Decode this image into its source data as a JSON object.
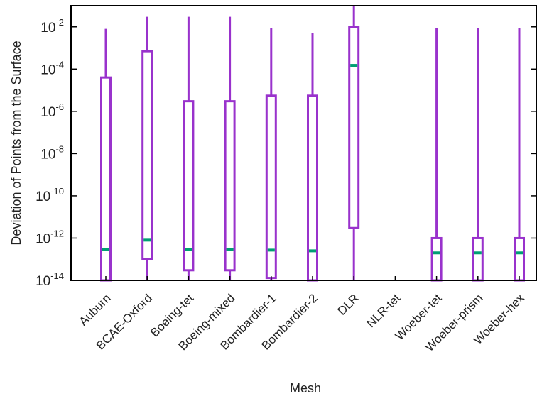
{
  "chart_data": {
    "type": "box",
    "title": "",
    "xlabel": "Mesh",
    "ylabel": "Deviation of Points from the Surface",
    "yscale": "log",
    "ylim": [
      1e-14,
      0.1
    ],
    "yticks": [
      {
        "value": 1e-14,
        "base": "10",
        "exp": "-14"
      },
      {
        "value": 1e-12,
        "base": "10",
        "exp": "-12"
      },
      {
        "value": 1e-10,
        "base": "10",
        "exp": "-10"
      },
      {
        "value": 1e-08,
        "base": "10",
        "exp": "-8"
      },
      {
        "value": 1e-06,
        "base": "10",
        "exp": "-6"
      },
      {
        "value": 0.0001,
        "base": "10",
        "exp": "-4"
      },
      {
        "value": 0.01,
        "base": "10",
        "exp": "-2"
      }
    ],
    "grid": false,
    "colors": {
      "box": "#9932CC",
      "median": "#009E73",
      "axis": "#000000"
    },
    "categories": [
      "Auburn",
      "BCAE-Oxford",
      "Boeing-tet",
      "Boeing-mixed",
      "Bombardier-1",
      "Bombardier-2",
      "DLR",
      "NLR-tet",
      "Woeber-tet",
      "Woeber-prism",
      "Woeber-hex"
    ],
    "boxes": [
      {
        "category": "Auburn",
        "whisker_low": 1e-14,
        "q1": 1e-14,
        "median": 3e-13,
        "q3": 4e-05,
        "whisker_high": 0.008
      },
      {
        "category": "BCAE-Oxford",
        "whisker_low": 1e-14,
        "q1": 1e-13,
        "median": 8e-13,
        "q3": 0.0007,
        "whisker_high": 0.03
      },
      {
        "category": "Boeing-tet",
        "whisker_low": 1e-14,
        "q1": 3e-14,
        "median": 3e-13,
        "q3": 3e-06,
        "whisker_high": 0.03
      },
      {
        "category": "Boeing-mixed",
        "whisker_low": 1e-14,
        "q1": 3e-14,
        "median": 3e-13,
        "q3": 3e-06,
        "whisker_high": 0.03
      },
      {
        "category": "Bombardier-1",
        "whisker_low": 1e-14,
        "q1": 1.3e-14,
        "median": 2.7e-13,
        "q3": 5.5e-06,
        "whisker_high": 0.009
      },
      {
        "category": "Bombardier-2",
        "whisker_low": 1e-14,
        "q1": 1e-14,
        "median": 2.5e-13,
        "q3": 5.5e-06,
        "whisker_high": 0.005
      },
      {
        "category": "DLR",
        "whisker_low": 1e-14,
        "q1": 3e-12,
        "median": 0.00015,
        "q3": 0.01,
        "whisker_high": 0.1
      },
      {
        "category": "NLR-tet",
        "whisker_low": null,
        "q1": null,
        "median": null,
        "q3": null,
        "whisker_high": null
      },
      {
        "category": "Woeber-tet",
        "whisker_low": 1e-14,
        "q1": 1e-14,
        "median": 2e-13,
        "q3": 1e-12,
        "whisker_high": 0.009
      },
      {
        "category": "Woeber-prism",
        "whisker_low": 1e-14,
        "q1": 1e-14,
        "median": 2e-13,
        "q3": 1e-12,
        "whisker_high": 0.009
      },
      {
        "category": "Woeber-hex",
        "whisker_low": 1e-14,
        "q1": 1e-14,
        "median": 2e-13,
        "q3": 1e-12,
        "whisker_high": 0.009
      }
    ]
  }
}
